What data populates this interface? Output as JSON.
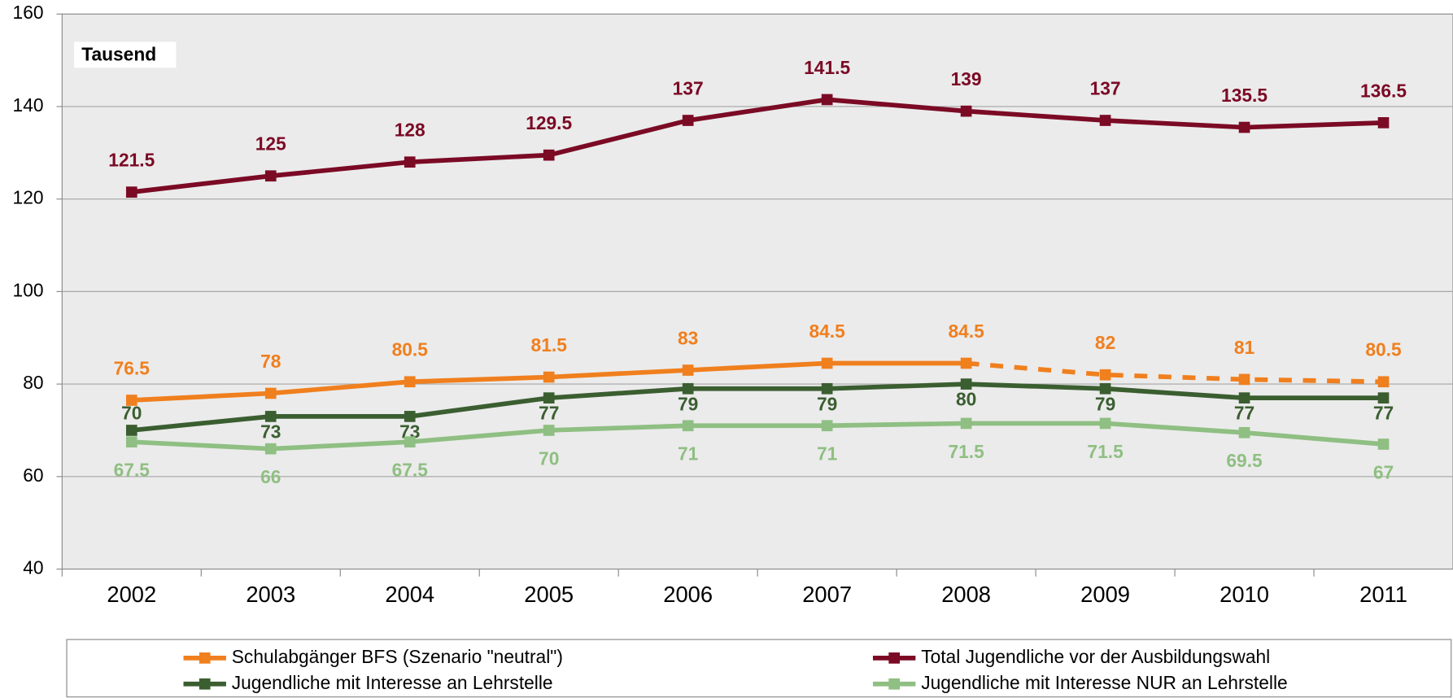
{
  "chart_data": {
    "type": "line",
    "annotation": "Tausend",
    "categories": [
      "2002",
      "2003",
      "2004",
      "2005",
      "2006",
      "2007",
      "2008",
      "2009",
      "2010",
      "2011"
    ],
    "series": [
      {
        "name": "Schulabgänger BFS (Szenario \"neutral\")",
        "color": "#f07f1e",
        "dashed_from": "2008",
        "values": [
          76.5,
          78,
          80.5,
          81.5,
          83,
          84.5,
          84.5,
          82,
          81,
          80.5
        ]
      },
      {
        "name": "Total Jugendliche vor der Ausbildungswahl",
        "color": "#7b0a25",
        "values": [
          121.5,
          125,
          128,
          129.5,
          137,
          141.5,
          139,
          137,
          135.5,
          136.5
        ]
      },
      {
        "name": "Jugendliche mit Interesse an Lehrstelle",
        "color": "#3b5e31",
        "values": [
          70,
          73,
          73,
          77,
          79,
          79,
          80,
          79,
          77,
          77
        ]
      },
      {
        "name": "Jugendliche mit Interesse NUR an Lehrstelle",
        "color": "#8fbf82",
        "values": [
          67.5,
          66,
          67.5,
          70,
          71,
          71,
          71.5,
          71.5,
          69.5,
          67
        ]
      }
    ],
    "ylim": [
      40,
      160
    ],
    "yticks": [
      40,
      60,
      80,
      100,
      120,
      140,
      160
    ],
    "grid": true,
    "legend": "bottom"
  }
}
